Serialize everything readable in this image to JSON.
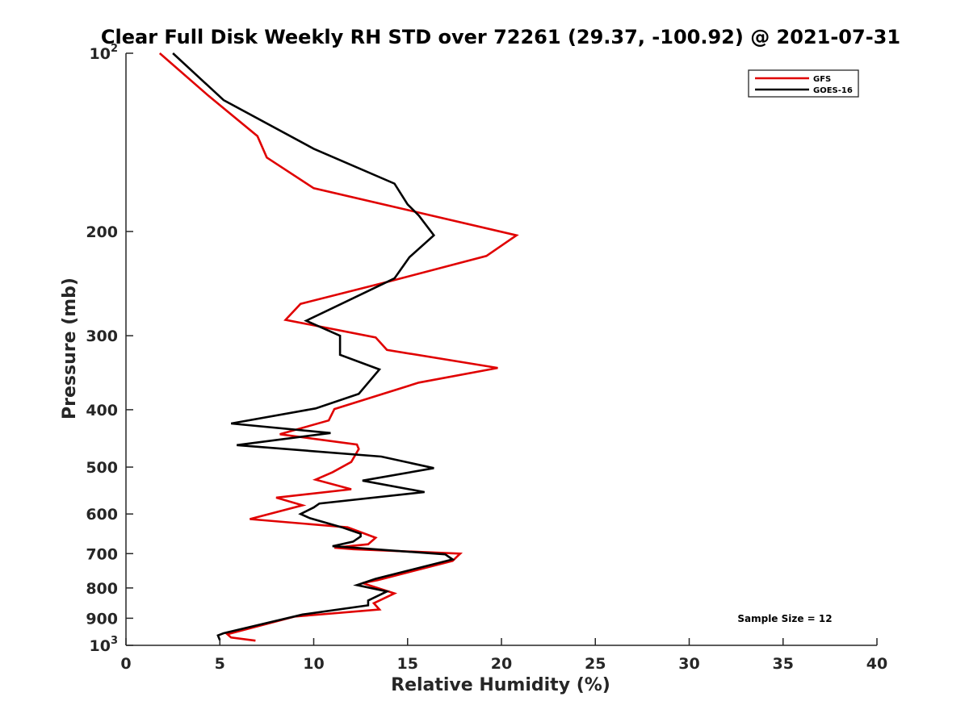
{
  "chart_data": {
    "type": "line",
    "title": "Clear Full Disk Weekly RH STD over 72261 (29.37, -100.92) @ 2021-07-31",
    "xlabel": "Relative Humidity (%)",
    "ylabel": "Pressure (mb)",
    "xlim": [
      0,
      40
    ],
    "ylim": [
      100,
      1000
    ],
    "yscale": "log",
    "y_reversed": true,
    "x_ticks": [
      "0",
      "5",
      "10",
      "15",
      "20",
      "25",
      "30",
      "35",
      "40"
    ],
    "y_ticks": [
      {
        "value": 100,
        "base": "10",
        "exp": "2"
      },
      {
        "value": 200,
        "label": "200"
      },
      {
        "value": 300,
        "label": "300"
      },
      {
        "value": 400,
        "label": "400"
      },
      {
        "value": 500,
        "label": "500"
      },
      {
        "value": 600,
        "label": "600"
      },
      {
        "value": 700,
        "label": "700"
      },
      {
        "value": 800,
        "label": "800"
      },
      {
        "value": 900,
        "label": "900"
      },
      {
        "value": 1000,
        "base": "10",
        "exp": "3"
      }
    ],
    "legend_position": "top-right",
    "grid": false,
    "annotation": "Sample Size = 12",
    "series": [
      {
        "name": "GFS",
        "color": "#e00000",
        "points": [
          [
            1.8,
            100
          ],
          [
            4.4,
            118
          ],
          [
            7.0,
            138
          ],
          [
            7.5,
            150
          ],
          [
            10.0,
            169
          ],
          [
            20.8,
            203
          ],
          [
            19.2,
            220
          ],
          [
            14.0,
            243
          ],
          [
            9.3,
            265
          ],
          [
            8.5,
            282
          ],
          [
            13.3,
            302
          ],
          [
            13.9,
            317
          ],
          [
            19.8,
            340
          ],
          [
            15.6,
            360
          ],
          [
            11.1,
            399
          ],
          [
            10.8,
            417
          ],
          [
            8.2,
            440
          ],
          [
            12.3,
            458
          ],
          [
            12.4,
            466
          ],
          [
            12.0,
            490
          ],
          [
            11.0,
            510
          ],
          [
            10.1,
            525
          ],
          [
            12.0,
            545
          ],
          [
            8.0,
            563
          ],
          [
            9.4,
            580
          ],
          [
            6.6,
            612
          ],
          [
            11.8,
            632
          ],
          [
            13.3,
            658
          ],
          [
            12.9,
            675
          ],
          [
            11.1,
            684
          ],
          [
            12.1,
            688
          ],
          [
            17.8,
            700
          ],
          [
            17.4,
            720
          ],
          [
            13.4,
            776
          ],
          [
            12.6,
            785
          ],
          [
            14.3,
            817
          ],
          [
            13.2,
            849
          ],
          [
            13.5,
            870
          ],
          [
            9.0,
            894
          ],
          [
            5.4,
            958
          ],
          [
            5.6,
            970
          ],
          [
            6.9,
            982
          ]
        ]
      },
      {
        "name": "GOES-16",
        "color": "#000000",
        "points": [
          [
            2.5,
            100
          ],
          [
            5.2,
            120
          ],
          [
            10.0,
            145
          ],
          [
            14.3,
            166
          ],
          [
            15.0,
            180
          ],
          [
            15.6,
            188
          ],
          [
            16.4,
            203
          ],
          [
            15.1,
            221
          ],
          [
            14.3,
            240
          ],
          [
            9.6,
            283
          ],
          [
            11.4,
            300
          ],
          [
            11.4,
            323
          ],
          [
            13.5,
            342
          ],
          [
            13.0,
            357
          ],
          [
            12.4,
            376
          ],
          [
            10.1,
            398
          ],
          [
            5.6,
            422
          ],
          [
            10.9,
            438
          ],
          [
            5.9,
            459
          ],
          [
            13.6,
            480
          ],
          [
            16.4,
            502
          ],
          [
            12.6,
            527
          ],
          [
            15.9,
            551
          ],
          [
            10.3,
            576
          ],
          [
            10.0,
            585
          ],
          [
            9.3,
            600
          ],
          [
            9.8,
            610
          ],
          [
            11.5,
            632
          ],
          [
            12.5,
            648
          ],
          [
            12.5,
            655
          ],
          [
            12.1,
            668
          ],
          [
            11.0,
            680
          ],
          [
            17.0,
            702
          ],
          [
            17.4,
            716
          ],
          [
            13.3,
            772
          ],
          [
            12.3,
            791
          ],
          [
            13.9,
            811
          ],
          [
            12.9,
            840
          ],
          [
            12.9,
            856
          ],
          [
            9.4,
            887
          ],
          [
            5.2,
            954
          ],
          [
            4.9,
            962
          ],
          [
            5.0,
            980
          ]
        ]
      }
    ]
  }
}
